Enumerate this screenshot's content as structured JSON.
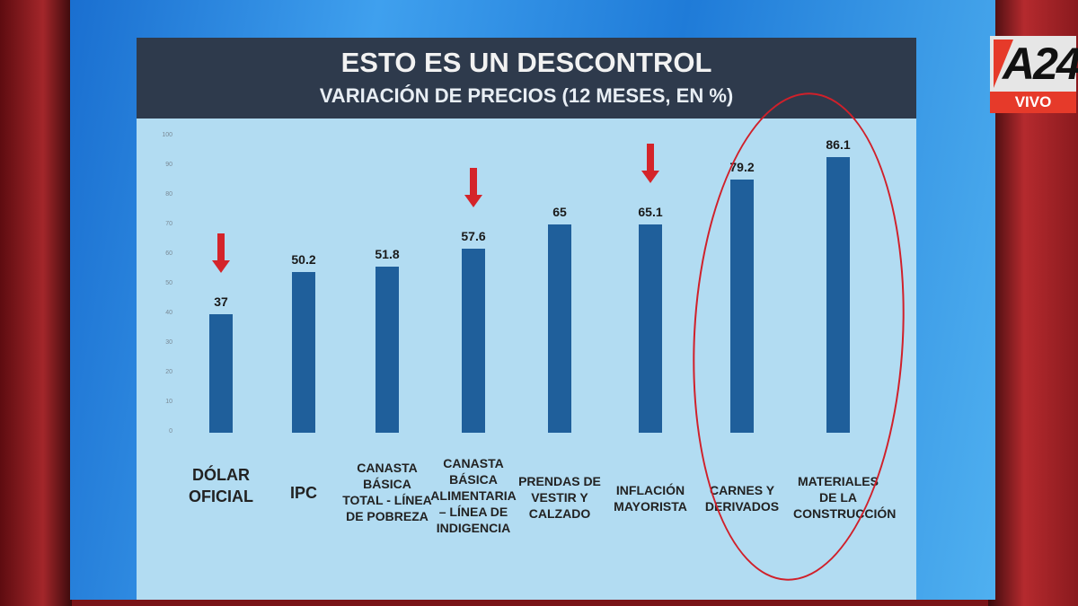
{
  "broadcast": {
    "channel": "A24",
    "live_label": "VIVO",
    "accent": "#e63a2a"
  },
  "chart_data": {
    "type": "bar",
    "title": "ESTO ES UN DESCONTROL",
    "subtitle": "VARIACIÓN DE PRECIOS (12 MESES, EN %)",
    "categories": [
      "DÓLAR OFICIAL",
      "IPC",
      "CANASTA BÁSICA TOTAL - LÍNEA DE POBREZA",
      "CANASTA BÁSICA ALIMENTARIA – LÍNEA DE INDIGENCIA",
      "PRENDAS DE VESTIR Y CALZADO",
      "INFLACIÓN MAYORISTA",
      "CARNES Y DERIVADOS",
      "MATERIALES DE LA CONSTRUCCIÓN"
    ],
    "values": [
      37,
      50.2,
      51.8,
      57.6,
      65,
      65.1,
      79.2,
      86.1
    ],
    "value_labels": [
      "37",
      "50.2",
      "51.8",
      "57.6",
      "65",
      "65.1",
      "79.2",
      "86.1"
    ],
    "yticks": [
      "0",
      "10",
      "20",
      "30",
      "40",
      "50",
      "60",
      "70",
      "80",
      "90",
      "100"
    ],
    "ylim": [
      0,
      100
    ],
    "bar_color": "#1f5f9b",
    "grid": false,
    "annotations": {
      "red_arrows_on": [
        "DÓLAR OFICIAL",
        "CANASTA BÁSICA ALIMENTARIA – LÍNEA DE INDIGENCIA",
        "INFLACIÓN MAYORISTA"
      ],
      "red_circle_around": [
        "CARNES Y DERIVADOS",
        "MATERIALES DE LA CONSTRUCCIÓN"
      ],
      "annotation_color": "#d4242a"
    }
  }
}
